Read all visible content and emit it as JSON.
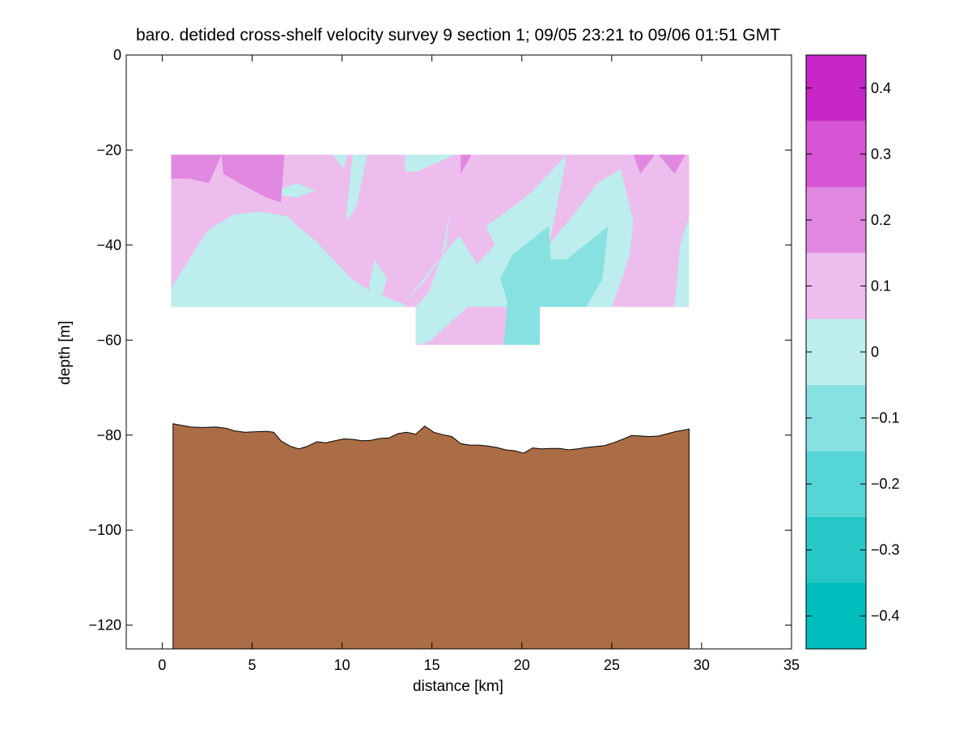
{
  "chart_data": {
    "type": "contour",
    "title": "baro. detided cross-shelf velocity survey 9 section 1; 09/05 23:21 to 09/06 01:51 GMT",
    "xlabel": "distance [km]",
    "ylabel": "depth [m]",
    "xlim": [
      -2,
      35
    ],
    "ylim": [
      -125,
      0
    ],
    "xticks": [
      0,
      5,
      10,
      15,
      20,
      25,
      30,
      35
    ],
    "yticks": [
      -120,
      -100,
      -80,
      -60,
      -40,
      -20,
      0
    ],
    "grid": false,
    "colorbar": {
      "range": [
        -0.45,
        0.45
      ],
      "levels": [
        -0.45,
        -0.35,
        -0.25,
        -0.15,
        -0.05,
        0.05,
        0.15,
        0.25,
        0.35,
        0.45
      ],
      "band_colors": [
        "#00bdbd",
        "#26c7c7",
        "#55d5d5",
        "#88e1e1",
        "#bdeded",
        "#edbded",
        "#e088e0",
        "#d555d5",
        "#c626c6",
        "#bd00bd"
      ],
      "ticks": [
        -0.4,
        -0.3,
        -0.2,
        -0.1,
        0,
        0.1,
        0.2,
        0.3,
        0.4
      ],
      "tick_labels": [
        "−0.4",
        "−0.3",
        "−0.2",
        "−0.1",
        "0",
        "0.1",
        "0.2",
        "0.3",
        "0.4"
      ]
    },
    "velocity_regions": [
      {
        "name": "background-weak-positive",
        "level_index": 5,
        "points": [
          [
            0.5,
            -21
          ],
          [
            29.3,
            -21
          ],
          [
            29.3,
            -53
          ],
          [
            21,
            -53
          ],
          [
            21,
            -61
          ],
          [
            14.1,
            -61
          ],
          [
            14.1,
            -53
          ],
          [
            0.5,
            -53
          ]
        ]
      },
      {
        "name": "weak-negative-left",
        "level_index": 4,
        "points": [
          [
            0.5,
            -53
          ],
          [
            0.5,
            -49
          ],
          [
            1.5,
            -43
          ],
          [
            2.5,
            -37
          ],
          [
            4,
            -33.5
          ],
          [
            5.5,
            -33
          ],
          [
            7,
            -34
          ],
          [
            7.5,
            -36
          ],
          [
            8.5,
            -39
          ],
          [
            9.5,
            -43
          ],
          [
            10.5,
            -47
          ],
          [
            11.5,
            -49.5
          ],
          [
            13.5,
            -52.5
          ],
          [
            13.5,
            -53
          ]
        ]
      },
      {
        "name": "weak-negative-cap-left",
        "level_index": 4,
        "points": [
          [
            6,
            -29
          ],
          [
            7.5,
            -27
          ],
          [
            8.5,
            -28.5
          ],
          [
            7.5,
            -30
          ]
        ]
      },
      {
        "name": "weak-negative-small-top",
        "level_index": 4,
        "points": [
          [
            9.5,
            -21
          ],
          [
            10.3,
            -21
          ],
          [
            10.1,
            -24
          ]
        ]
      },
      {
        "name": "weak-negative-top-15",
        "level_index": 4,
        "points": [
          [
            13.5,
            -21
          ],
          [
            16.3,
            -21
          ],
          [
            14.2,
            -24.5
          ],
          [
            13.5,
            -24.5
          ]
        ]
      },
      {
        "name": "weak-negative-spike-12",
        "level_index": 4,
        "points": [
          [
            11.8,
            -43
          ],
          [
            12.5,
            -47
          ],
          [
            12.1,
            -52.5
          ],
          [
            11.5,
            -49
          ]
        ]
      },
      {
        "name": "weak-negative-top-11",
        "level_index": 4,
        "points": [
          [
            10.6,
            -21
          ],
          [
            11.4,
            -21
          ],
          [
            10.8,
            -32
          ],
          [
            10.2,
            -35
          ]
        ]
      },
      {
        "name": "weak-negative-center",
        "level_index": 4,
        "points": [
          [
            17,
            -53
          ],
          [
            14.8,
            -60.5
          ],
          [
            14.1,
            -61
          ],
          [
            14.1,
            -53
          ],
          [
            14.8,
            -50
          ],
          [
            15.3,
            -45
          ],
          [
            15.8,
            -40
          ],
          [
            16,
            -33
          ],
          [
            15.5,
            -43
          ],
          [
            14.5,
            -48
          ],
          [
            13.5,
            -52
          ],
          [
            16.5,
            -38
          ],
          [
            17.5,
            -44
          ],
          [
            18.5,
            -40
          ],
          [
            18,
            -36
          ],
          [
            19.5,
            -32
          ],
          [
            20.5,
            -29
          ],
          [
            22.5,
            -21
          ],
          [
            22,
            -31
          ],
          [
            21.5,
            -40
          ],
          [
            23,
            -33
          ],
          [
            24.2,
            -27
          ],
          [
            25.5,
            -24
          ],
          [
            26.2,
            -35
          ],
          [
            26,
            -42
          ],
          [
            25.5,
            -48
          ],
          [
            25,
            -53
          ]
        ]
      },
      {
        "name": "weak-negative-right",
        "level_index": 4,
        "points": [
          [
            28.5,
            -53
          ],
          [
            28.8,
            -40
          ],
          [
            29.3,
            -34
          ],
          [
            29.3,
            -53
          ]
        ]
      },
      {
        "name": "moderate-negative-center",
        "level_index": 3,
        "points": [
          [
            19.2,
            -52
          ],
          [
            18.8,
            -47
          ],
          [
            19.5,
            -42
          ],
          [
            20.5,
            -39
          ],
          [
            21.5,
            -36
          ],
          [
            21.6,
            -43
          ],
          [
            22.5,
            -43
          ],
          [
            23.5,
            -40
          ],
          [
            24.8,
            -36
          ],
          [
            24.5,
            -47
          ],
          [
            23.6,
            -53
          ],
          [
            21,
            -53
          ],
          [
            21,
            -61
          ],
          [
            19,
            -61
          ]
        ]
      },
      {
        "name": "moderate-positive-top-left",
        "level_index": 6,
        "points": [
          [
            0.5,
            -21
          ],
          [
            3.3,
            -21
          ],
          [
            2.6,
            -27
          ],
          [
            1.5,
            -26
          ],
          [
            0.5,
            -26
          ]
        ]
      },
      {
        "name": "moderate-positive-top-mid",
        "level_index": 6,
        "points": [
          [
            3.3,
            -21
          ],
          [
            6.8,
            -21
          ],
          [
            6.6,
            -31
          ],
          [
            5.8,
            -30
          ],
          [
            4.3,
            -27
          ],
          [
            3.4,
            -25
          ]
        ]
      },
      {
        "name": "moderate-positive-top-17",
        "level_index": 6,
        "points": [
          [
            16.6,
            -21
          ],
          [
            17.2,
            -21
          ],
          [
            16.6,
            -25
          ]
        ]
      },
      {
        "name": "moderate-positive-top-26",
        "level_index": 6,
        "points": [
          [
            26.2,
            -21
          ],
          [
            27.4,
            -21
          ],
          [
            26.6,
            -25
          ]
        ]
      },
      {
        "name": "moderate-positive-top-28",
        "level_index": 6,
        "points": [
          [
            27.6,
            -21
          ],
          [
            29.1,
            -21
          ],
          [
            28.5,
            -25
          ]
        ]
      }
    ],
    "bathymetry": {
      "bottom": -125,
      "points": [
        [
          0.6,
          -77.6
        ],
        [
          1,
          -77.9
        ],
        [
          1.6,
          -78.3
        ],
        [
          2.2,
          -78.4
        ],
        [
          3,
          -78.3
        ],
        [
          3.6,
          -78.6
        ],
        [
          4,
          -79.1
        ],
        [
          4.6,
          -79.4
        ],
        [
          5.2,
          -79.3
        ],
        [
          5.8,
          -79.2
        ],
        [
          6.2,
          -79.4
        ],
        [
          6.6,
          -81.2
        ],
        [
          7.1,
          -82.3
        ],
        [
          7.6,
          -82.9
        ],
        [
          8.1,
          -82.3
        ],
        [
          8.6,
          -81.4
        ],
        [
          9.1,
          -81.6
        ],
        [
          9.6,
          -81.2
        ],
        [
          10.1,
          -80.8
        ],
        [
          10.6,
          -80.9
        ],
        [
          11.1,
          -81.2
        ],
        [
          11.6,
          -81.1
        ],
        [
          12.1,
          -80.7
        ],
        [
          12.6,
          -80.6
        ],
        [
          13.1,
          -79.7
        ],
        [
          13.6,
          -79.4
        ],
        [
          14.1,
          -79.8
        ],
        [
          14.6,
          -78.1
        ],
        [
          15.1,
          -79.4
        ],
        [
          15.6,
          -79.9
        ],
        [
          16.1,
          -80.3
        ],
        [
          16.6,
          -81.8
        ],
        [
          17.1,
          -82.1
        ],
        [
          17.6,
          -82.1
        ],
        [
          18.1,
          -82.3
        ],
        [
          18.6,
          -82.6
        ],
        [
          19.1,
          -83.1
        ],
        [
          19.6,
          -83.3
        ],
        [
          20.1,
          -83.8
        ],
        [
          20.6,
          -82.7
        ],
        [
          21.1,
          -82.9
        ],
        [
          21.6,
          -82.8
        ],
        [
          22.1,
          -82.8
        ],
        [
          22.6,
          -83.1
        ],
        [
          23.1,
          -82.9
        ],
        [
          23.6,
          -82.6
        ],
        [
          24.1,
          -82.4
        ],
        [
          24.6,
          -82.2
        ],
        [
          25.1,
          -81.6
        ],
        [
          25.6,
          -80.9
        ],
        [
          26.1,
          -80.1
        ],
        [
          26.6,
          -80.2
        ],
        [
          27.1,
          -80.3
        ],
        [
          27.6,
          -80.2
        ],
        [
          28.1,
          -79.7
        ],
        [
          28.6,
          -79.2
        ],
        [
          29.1,
          -78.9
        ],
        [
          29.3,
          -78.7
        ]
      ],
      "color": "#ab6d46"
    }
  }
}
